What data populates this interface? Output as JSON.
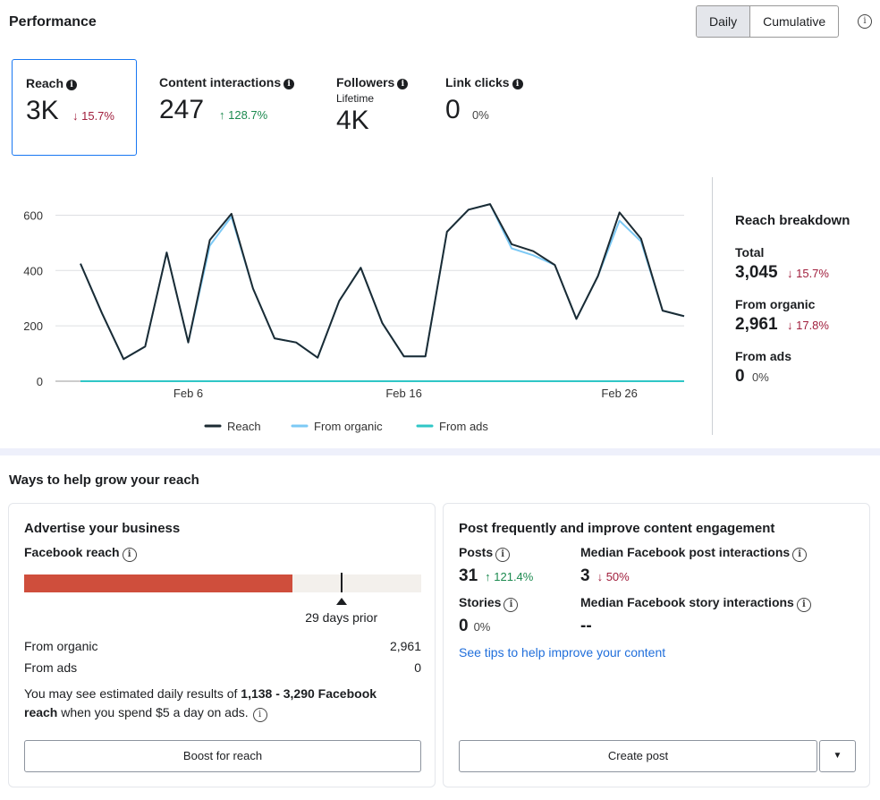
{
  "header": {
    "title": "Performance",
    "toggle": [
      "Daily",
      "Cumulative"
    ],
    "info_glyph": "i"
  },
  "metrics": [
    {
      "label": "Reach",
      "value": "3K",
      "change": "↓ 15.7%",
      "trend": "down"
    },
    {
      "label": "Content interactions",
      "value": "247",
      "change": "↑ 128.7%",
      "trend": "up"
    },
    {
      "label": "Followers",
      "sublabel": "Lifetime",
      "value": "4K"
    },
    {
      "label": "Link clicks",
      "value": "0",
      "change": "0%"
    }
  ],
  "chart_data": {
    "type": "line",
    "x": [
      "Feb 1",
      "Feb 2",
      "Feb 3",
      "Feb 4",
      "Feb 5",
      "Feb 6",
      "Feb 7",
      "Feb 8",
      "Feb 9",
      "Feb 10",
      "Feb 11",
      "Feb 12",
      "Feb 13",
      "Feb 14",
      "Feb 15",
      "Feb 16",
      "Feb 17",
      "Feb 18",
      "Feb 19",
      "Feb 20",
      "Feb 21",
      "Feb 22",
      "Feb 23",
      "Feb 24",
      "Feb 25",
      "Feb 26",
      "Feb 27",
      "Feb 28",
      "Feb 29"
    ],
    "series": [
      {
        "name": "Reach",
        "color": "#1c2b33",
        "values": [
          425,
          245,
          80,
          125,
          465,
          140,
          510,
          605,
          335,
          155,
          140,
          85,
          290,
          410,
          210,
          90,
          90,
          540,
          620,
          640,
          495,
          470,
          420,
          225,
          380,
          610,
          515,
          255,
          235
        ]
      },
      {
        "name": "From organic",
        "color": "#7cc9f5",
        "values": [
          425,
          245,
          80,
          125,
          465,
          140,
          490,
          595,
          335,
          155,
          140,
          85,
          290,
          410,
          210,
          90,
          90,
          540,
          620,
          640,
          480,
          455,
          420,
          225,
          380,
          580,
          505,
          255,
          235
        ]
      },
      {
        "name": "From ads",
        "color": "#2fc6c6",
        "values": [
          0,
          0,
          0,
          0,
          0,
          0,
          0,
          0,
          0,
          0,
          0,
          0,
          0,
          0,
          0,
          0,
          0,
          0,
          0,
          0,
          0,
          0,
          0,
          0,
          0,
          0,
          0,
          0,
          0
        ]
      }
    ],
    "yticks": [
      0,
      200,
      400,
      600
    ],
    "xtick_labels": [
      "Feb 6",
      "Feb 16",
      "Feb 26"
    ],
    "xtick_index": [
      5,
      15,
      25
    ],
    "ylim": [
      0,
      650
    ]
  },
  "breakdown": {
    "title": "Reach breakdown",
    "items": [
      {
        "label": "Total",
        "value": "3,045",
        "change": "↓ 15.7%",
        "trend": "down"
      },
      {
        "label": "From organic",
        "value": "2,961",
        "change": "↓ 17.8%",
        "trend": "down"
      },
      {
        "label": "From ads",
        "value": "0",
        "change": "0%"
      }
    ]
  },
  "grow": {
    "title": "Ways to help grow your reach"
  },
  "advertise": {
    "title": "Advertise your business",
    "reach_label": "Facebook reach",
    "bar_fraction": 0.675,
    "marker_fraction": 0.8,
    "marker_label": "29 days prior",
    "rows": [
      {
        "label": "From organic",
        "value": "2,961"
      },
      {
        "label": "From ads",
        "value": "0"
      }
    ],
    "note_pre": "You may see estimated daily results of ",
    "note_bold1": "1,138 - 3,290 Facebook",
    "note_bold2": "reach",
    "note_post": " when you spend $5 a day on ads.",
    "button": "Boost for reach",
    "bar_color": "#cf4e3c"
  },
  "post": {
    "title": "Post frequently and improve content engagement",
    "stats": [
      {
        "label": "Posts",
        "value": "31",
        "change": "↑ 121.4%",
        "trend": "up"
      },
      {
        "label": "Median Facebook post interactions",
        "value": "3",
        "change": "↓ 50%",
        "trend": "down"
      },
      {
        "label": "Stories",
        "value": "0",
        "change": "0%"
      },
      {
        "label": "Median Facebook story interactions",
        "value": "--"
      }
    ],
    "link": "See tips to help improve your content",
    "button": "Create post",
    "dropdown_glyph": "▼"
  }
}
